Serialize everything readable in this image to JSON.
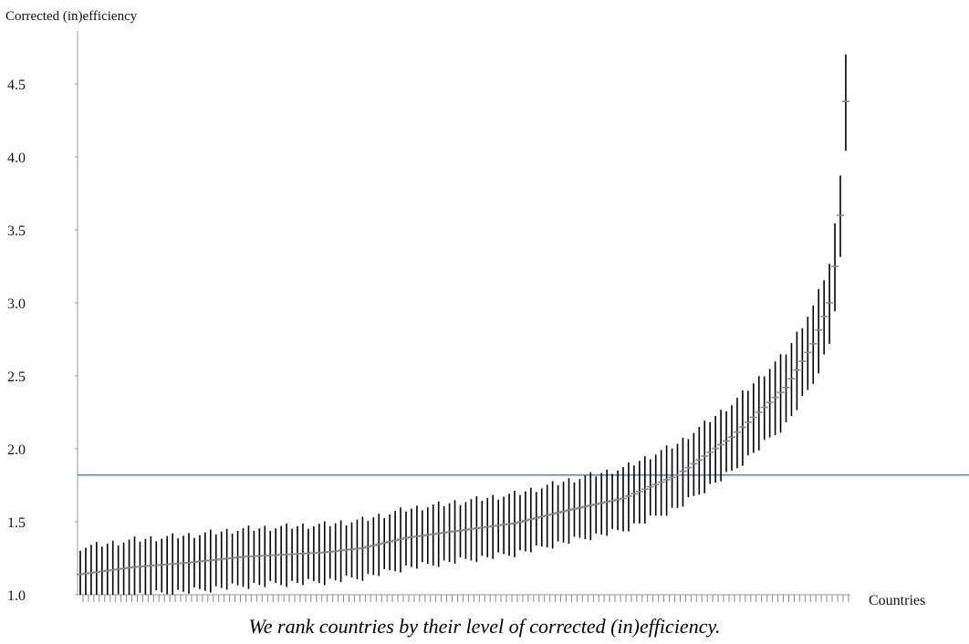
{
  "chart_data": {
    "type": "errorbar",
    "ylabel": "Corrected (in)efficiency",
    "xlabel": "Countries",
    "ylim": [
      1.0,
      4.75
    ],
    "yticks": [
      1.0,
      1.5,
      2.0,
      2.5,
      3.0,
      3.5,
      4.0,
      4.5
    ],
    "ytick_labels": [
      "1.0",
      "1.5",
      "2.0",
      "2.5",
      "3.0",
      "3.5",
      "4.0",
      "4.5"
    ],
    "reference_line": 1.82,
    "reference_line_color": "#4472c4",
    "bar_color": "#000000",
    "point_color": "#888888",
    "n_countries": 142,
    "anchors": [
      [
        0,
        1.14
      ],
      [
        10,
        1.19
      ],
      [
        20,
        1.22
      ],
      [
        30,
        1.26
      ],
      [
        45,
        1.29
      ],
      [
        52,
        1.32
      ],
      [
        60,
        1.39
      ],
      [
        70,
        1.44
      ],
      [
        80,
        1.49
      ],
      [
        90,
        1.58
      ],
      [
        100,
        1.66
      ],
      [
        110,
        1.82
      ],
      [
        120,
        2.08
      ],
      [
        125,
        2.25
      ],
      [
        130,
        2.42
      ],
      [
        135,
        2.72
      ],
      [
        138,
        3.0
      ],
      [
        139,
        3.25
      ],
      [
        140,
        3.6
      ],
      [
        141,
        4.38
      ]
    ]
  },
  "caption": "We rank countries by their level of corrected (in)efficiency."
}
